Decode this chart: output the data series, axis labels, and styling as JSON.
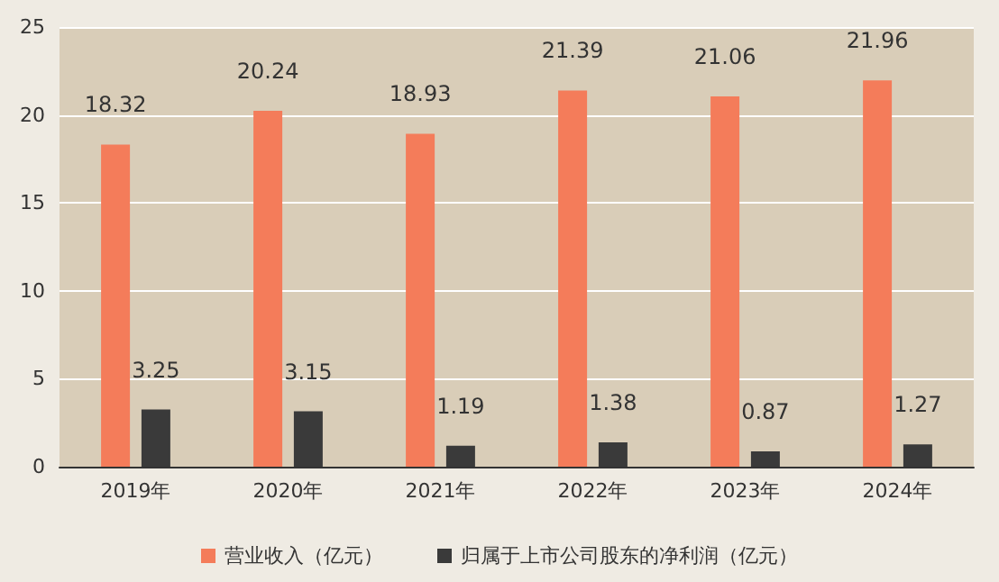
{
  "chart_data": {
    "type": "bar",
    "categories": [
      "2019年",
      "2020年",
      "2021年",
      "2022年",
      "2023年",
      "2024年"
    ],
    "series": [
      {
        "name": "营业收入（亿元）",
        "color": "#f47c5a",
        "values": [
          18.32,
          20.24,
          18.93,
          21.39,
          21.06,
          21.96
        ]
      },
      {
        "name": "归属于上市公司股东的净利润（亿元）",
        "color": "#3a3a3a",
        "values": [
          3.25,
          3.15,
          1.19,
          1.38,
          0.87,
          1.27
        ]
      }
    ],
    "ylim": [
      0,
      25
    ],
    "yticks": [
      0,
      5,
      10,
      15,
      20,
      25
    ],
    "grid": "y",
    "legend": "bottom",
    "data_labels": true
  }
}
